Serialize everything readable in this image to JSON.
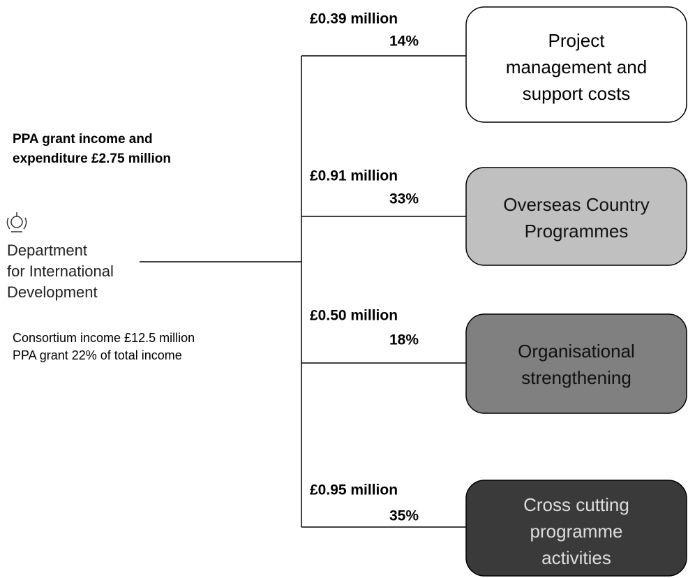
{
  "funder": {
    "heading": [
      "PPA grant income and",
      "expenditure £2.75 million"
    ],
    "name": [
      "Department",
      "for International",
      "Development"
    ],
    "notes": [
      "Consortium  income £12.5 million",
      "PPA grant 22% of total income"
    ]
  },
  "branches": [
    {
      "amount": "£0.39 million",
      "share": "14%",
      "label": [
        "Project",
        "management and",
        "support costs"
      ]
    },
    {
      "amount": "£0.91 million",
      "share": "33%",
      "label": [
        "Overseas Country",
        "Programmes"
      ]
    },
    {
      "amount": "£0.50 million",
      "share": "18%",
      "label": [
        "Organisational",
        "strengthening"
      ]
    },
    {
      "amount": "£0.95 million",
      "share": "35%",
      "label": [
        "Cross cutting",
        "programme",
        "activities"
      ]
    }
  ]
}
